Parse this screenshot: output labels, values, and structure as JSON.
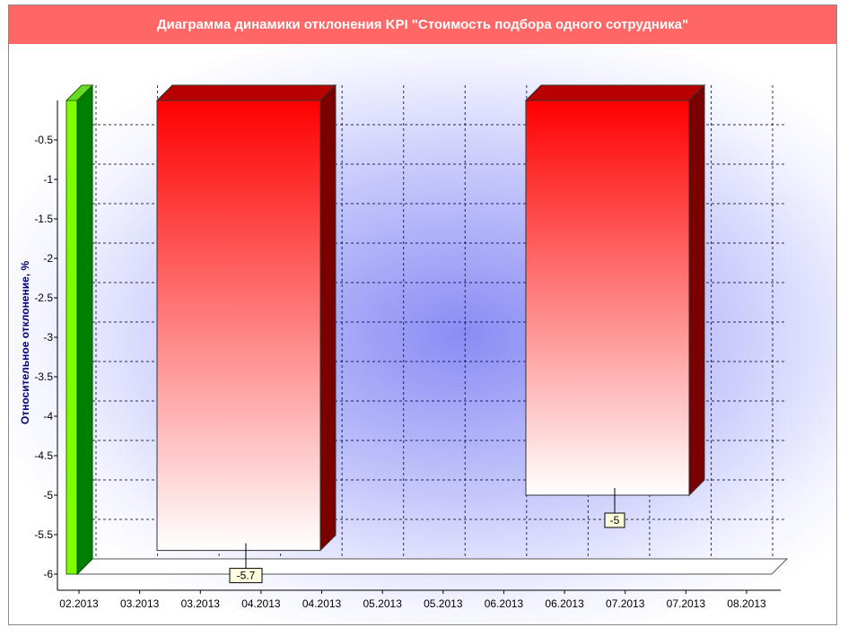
{
  "title": "Диаграмма динамики отклонения KPI \"Стоимость подбора одного сотрудника\"",
  "chart_data": {
    "type": "bar",
    "ylabel": "Относительное отклонение, %",
    "ylim": [
      -6,
      0
    ],
    "yticks": [
      "-0.5",
      "-1",
      "-1.5",
      "-2",
      "-2.5",
      "-3",
      "-3.5",
      "-4",
      "-4.5",
      "-5",
      "-5.5",
      "-6"
    ],
    "xticks": [
      "02.2013",
      "03.2013",
      "03.2013",
      "04.2013",
      "04.2013",
      "05.2013",
      "05.2013",
      "06.2013",
      "06.2013",
      "07.2013",
      "07.2013",
      "08.2013"
    ],
    "bars": [
      {
        "value": -5.7,
        "label": "-5.7",
        "color": "#ff0000"
      },
      {
        "value": -5,
        "label": "-5",
        "color": "#ff0000"
      }
    ],
    "wall_color": "#7fff00",
    "grid": true
  }
}
